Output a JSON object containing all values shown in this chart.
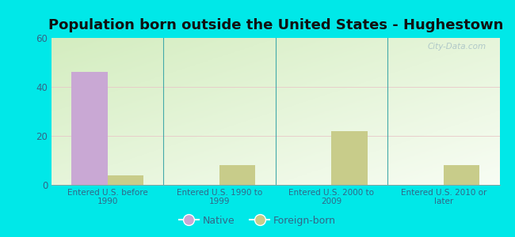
{
  "title": "Population born outside the United States - Hughestown",
  "categories": [
    "Entered U.S. before\n1990",
    "Entered U.S. 1990 to\n1999",
    "Entered U.S. 2000 to\n2009",
    "Entered U.S. 2010 or\nlater"
  ],
  "native_values": [
    46,
    0,
    0,
    0
  ],
  "foreign_values": [
    4,
    8,
    22,
    8
  ],
  "native_color": "#c9a8d4",
  "foreign_color": "#c8cc8a",
  "ylim": [
    0,
    60
  ],
  "yticks": [
    0,
    20,
    40,
    60
  ],
  "background_outer": "#00e8e8",
  "watermark": "City-Data.com",
  "bar_width": 0.32,
  "title_fontsize": 13,
  "legend_native": "Native",
  "legend_foreign": "Foreign-born"
}
